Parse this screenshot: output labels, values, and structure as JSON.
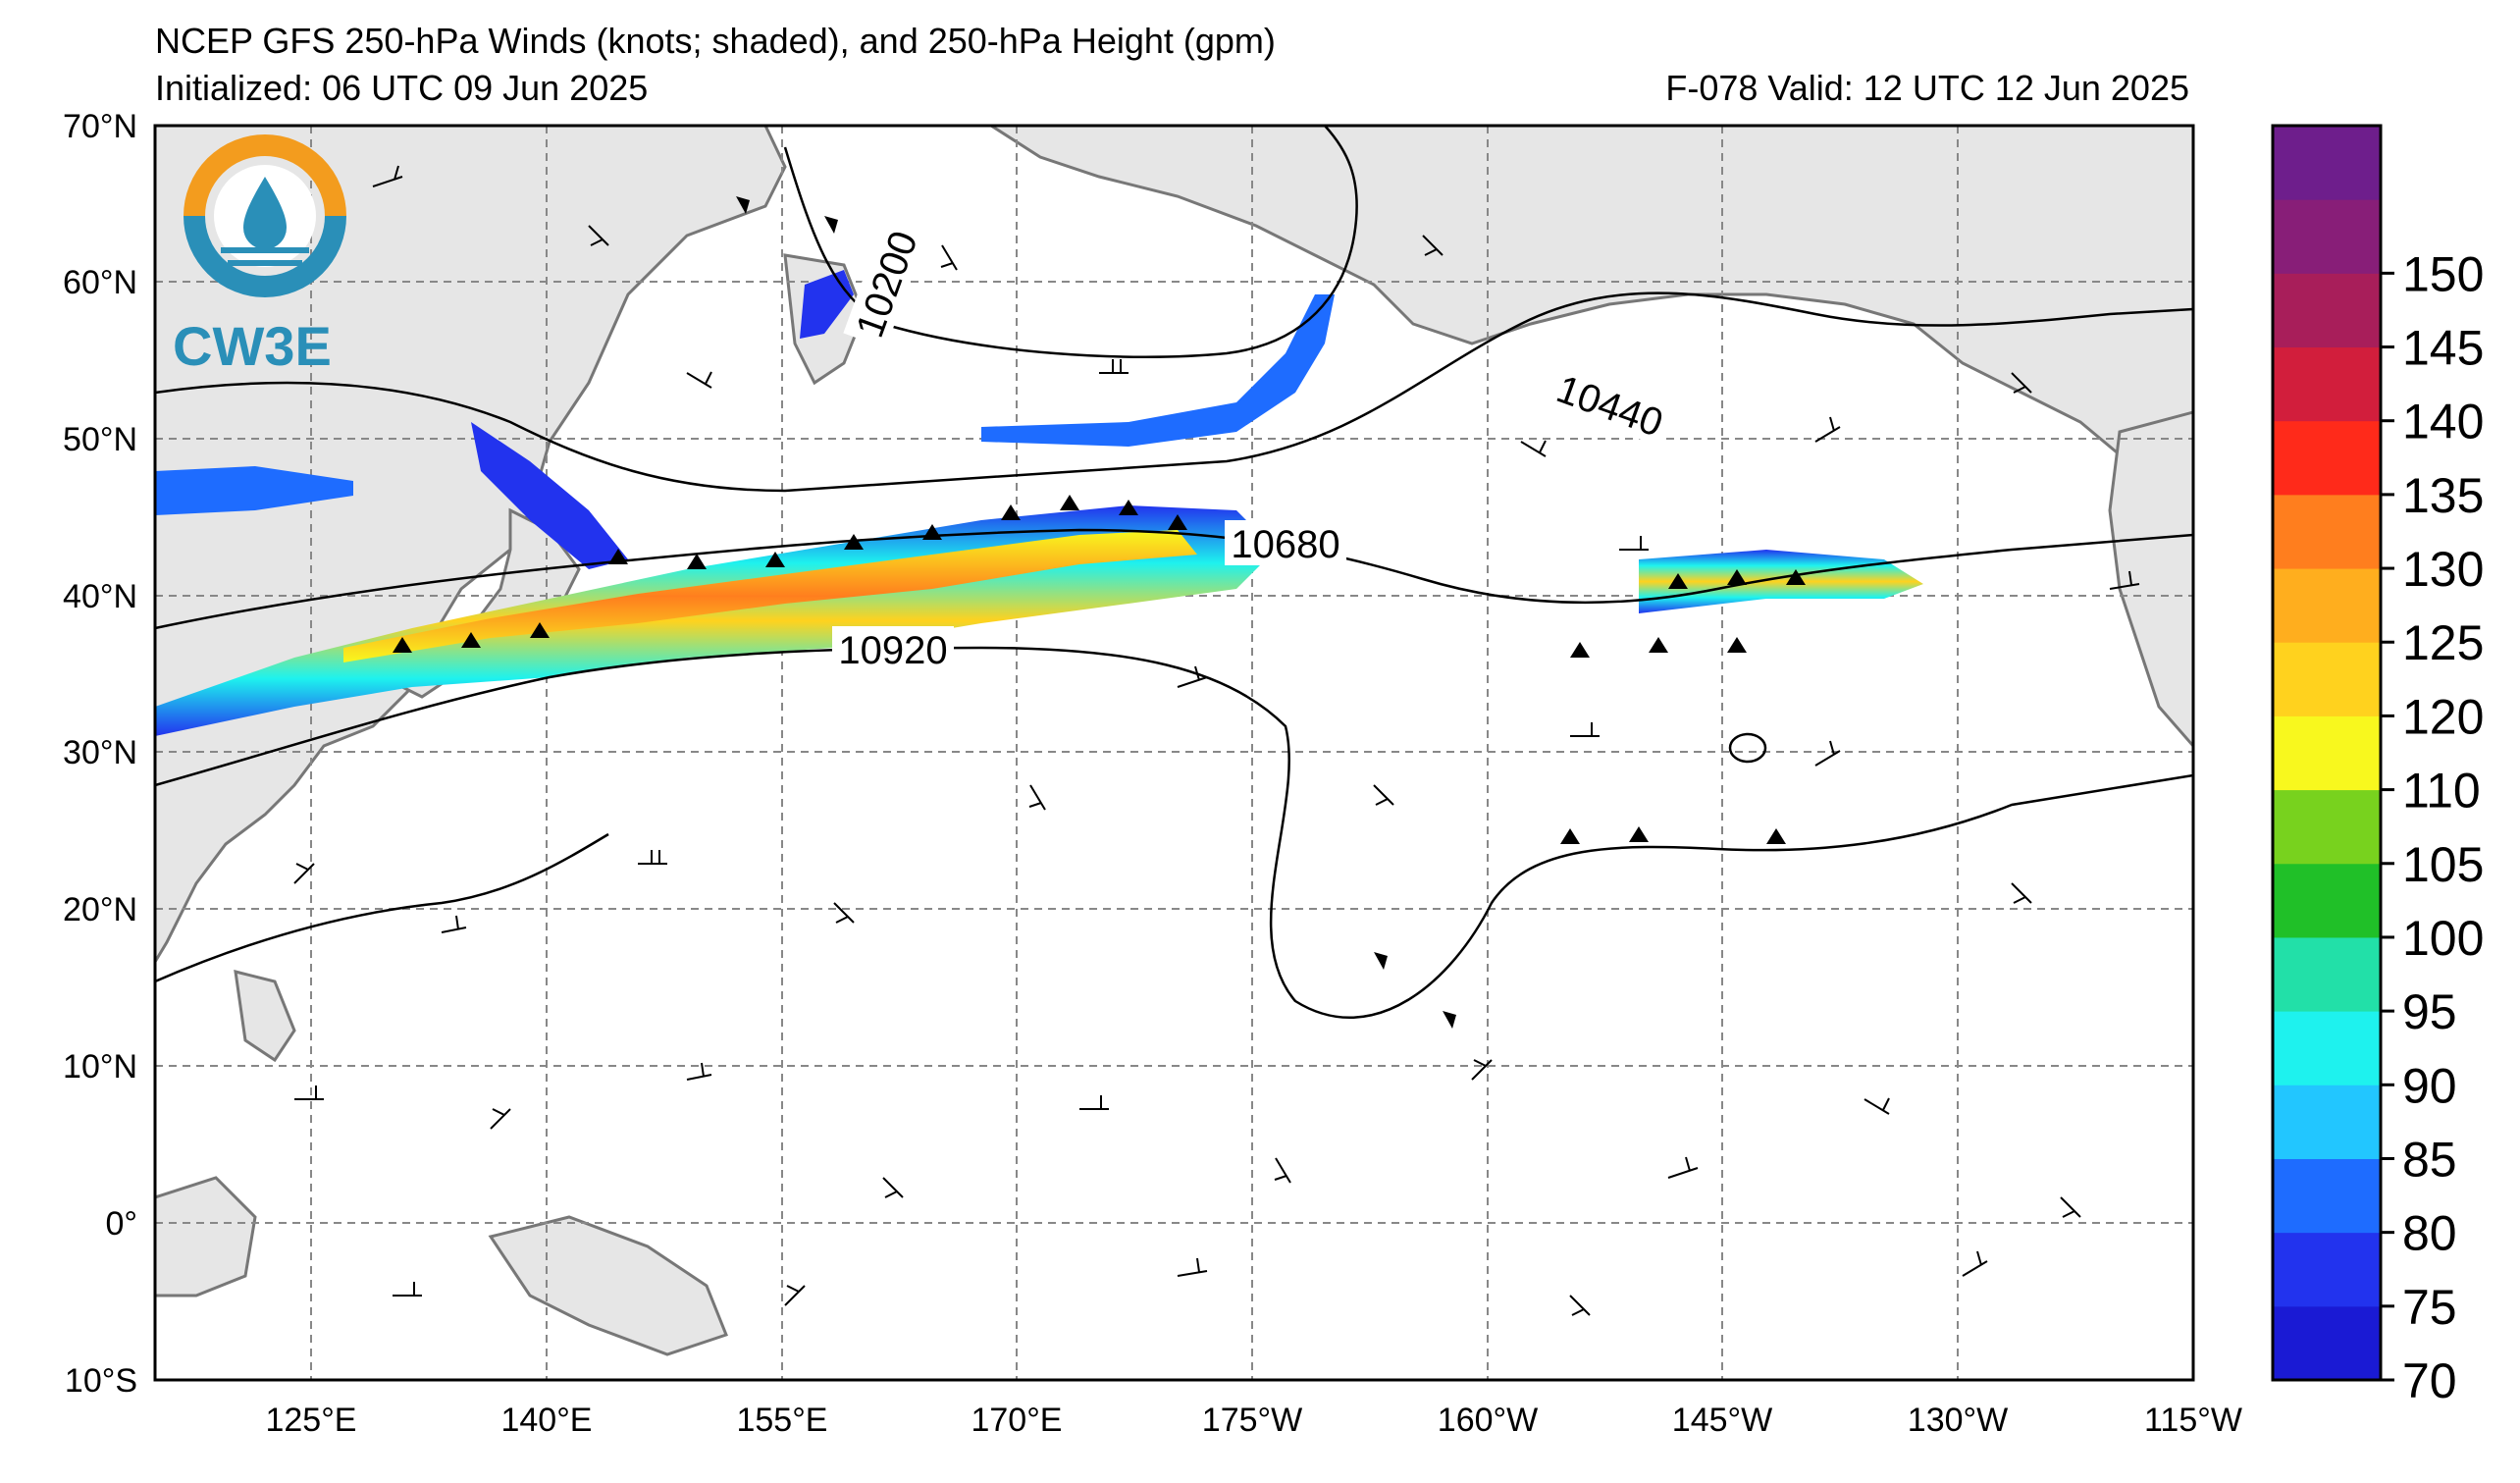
{
  "header": {
    "title": "NCEP GFS 250-hPa Winds (knots; shaded), and 250-hPa Height (gpm)",
    "initialized": "Initialized: 06 UTC 09 Jun 2025",
    "valid": "F-078  Valid: 12 UTC 12 Jun 2025"
  },
  "logo": {
    "text": "CW3E"
  },
  "map": {
    "lat_labels": [
      "70°N",
      "60°N",
      "50°N",
      "40°N",
      "30°N",
      "20°N",
      "10°N",
      "0°",
      "10°S"
    ],
    "lon_labels": [
      "125°E",
      "140°E",
      "155°E",
      "170°E",
      "175°W",
      "160°W",
      "145°W",
      "130°W",
      "115°W"
    ],
    "contour_labels": [
      "10200",
      "10440",
      "10680",
      "10920"
    ],
    "colors": {
      "land": "#e6e6e6",
      "coast": "#777777",
      "grid": "#888888"
    }
  },
  "colorbar": {
    "ticks": [
      "70",
      "75",
      "80",
      "85",
      "90",
      "95",
      "100",
      "105",
      "110",
      "120",
      "125",
      "130",
      "135",
      "140",
      "145",
      "150"
    ],
    "colors": [
      "#1a1ad4",
      "#2233ee",
      "#1e6cff",
      "#22c6ff",
      "#1ef2ee",
      "#22e0a8",
      "#20c028",
      "#78d21e",
      "#f8f81e",
      "#ffd21e",
      "#ffae1e",
      "#ff7e1e",
      "#ff2a1a",
      "#d21e3c",
      "#a81e5a",
      "#881e78",
      "#6e1e8c"
    ]
  }
}
